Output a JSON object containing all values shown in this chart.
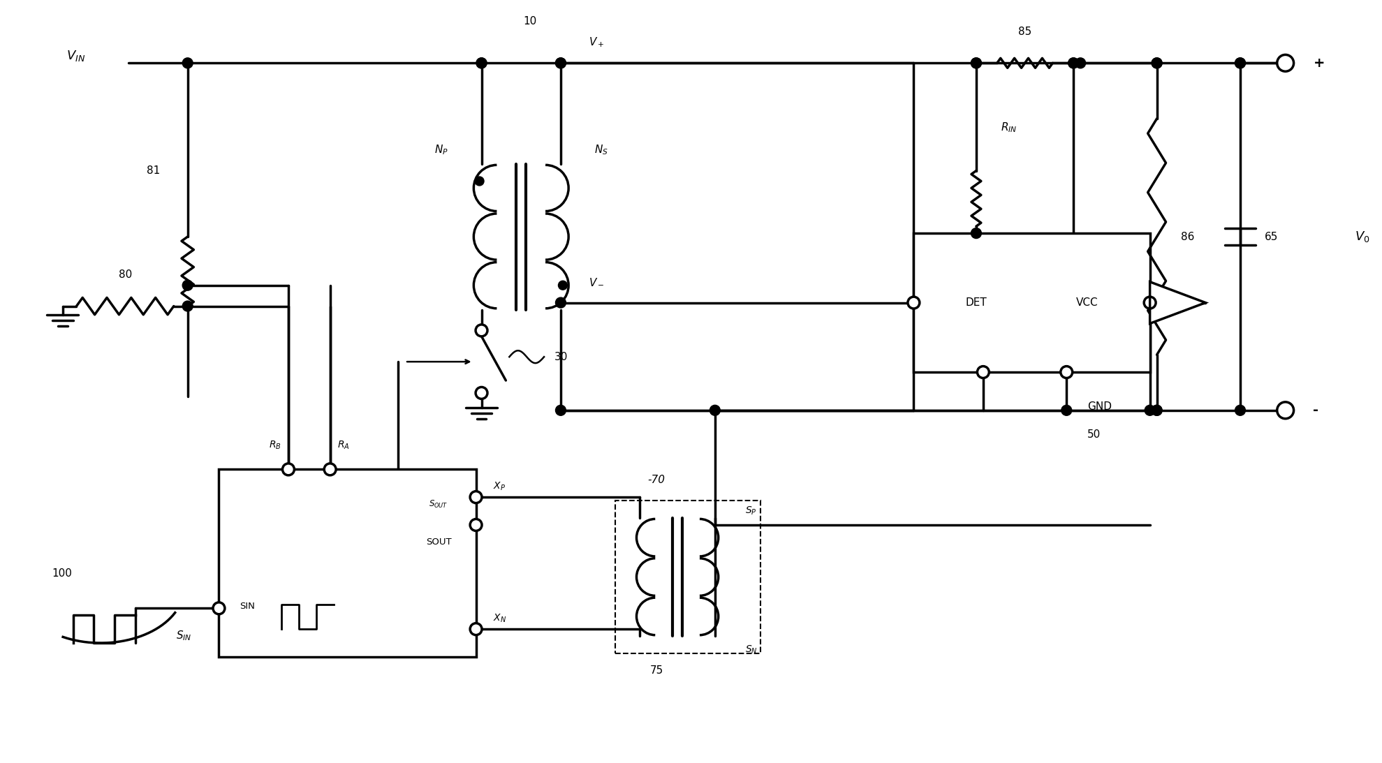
{
  "bg": "#ffffff",
  "lc": "#000000",
  "lw": 2.5,
  "fig_w": 19.79,
  "fig_h": 10.93,
  "xlim": [
    0,
    197.9
  ],
  "ylim": [
    0,
    109.3
  ],
  "fs": 11,
  "fs_small": 9.5,
  "fs_large": 13
}
